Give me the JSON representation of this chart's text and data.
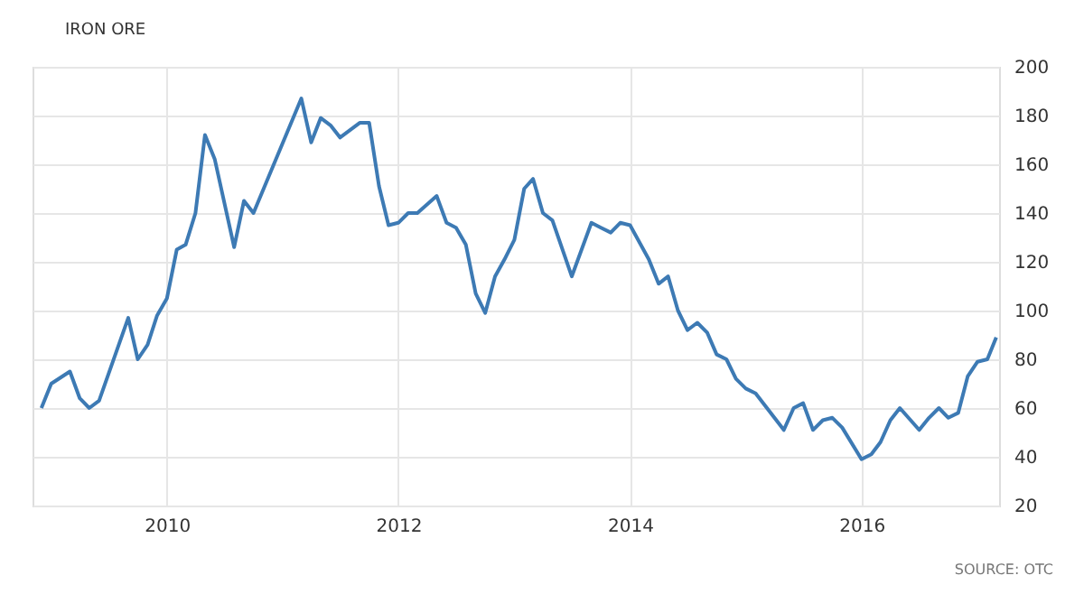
{
  "chart_data": {
    "type": "line",
    "title": "IRON ORE",
    "x": [
      "2008-12",
      "2009-01",
      "2009-03",
      "2009-04",
      "2009-05",
      "2009-06",
      "2009-09",
      "2009-10",
      "2009-11",
      "2009-12",
      "2010-01",
      "2010-02",
      "2010-03",
      "2010-04",
      "2010-05",
      "2010-06",
      "2010-08",
      "2010-09",
      "2010-10",
      "2011-03",
      "2011-04",
      "2011-05",
      "2011-06",
      "2011-07",
      "2011-09",
      "2011-10",
      "2011-11",
      "2011-12",
      "2012-01",
      "2012-02",
      "2012-03",
      "2012-05",
      "2012-06",
      "2012-07",
      "2012-08",
      "2012-09",
      "2012-10",
      "2012-11",
      "2012-12",
      "2013-01",
      "2013-02",
      "2013-03",
      "2013-04",
      "2013-05",
      "2013-07",
      "2013-09",
      "2013-10",
      "2013-11",
      "2013-12",
      "2014-01",
      "2014-03",
      "2014-04",
      "2014-05",
      "2014-06",
      "2014-07",
      "2014-08",
      "2014-09",
      "2014-10",
      "2014-11",
      "2014-12",
      "2015-01",
      "2015-02",
      "2015-05",
      "2015-06",
      "2015-07",
      "2015-08",
      "2015-09",
      "2015-10",
      "2015-11",
      "2016-01",
      "2016-02",
      "2016-03",
      "2016-04",
      "2016-05",
      "2016-07",
      "2016-08",
      "2016-09",
      "2016-10",
      "2016-11",
      "2016-12",
      "2017-01",
      "2017-02",
      "2017-03"
    ],
    "series": [
      {
        "color": "#3d7ab4",
        "values": [
          60,
          70,
          75,
          64,
          60,
          63,
          97,
          80,
          86,
          98,
          105,
          125,
          127,
          140,
          172,
          162,
          126,
          145,
          140,
          187,
          169,
          179,
          176,
          171,
          177,
          177,
          151,
          135,
          136,
          140,
          140,
          147,
          136,
          134,
          127,
          107,
          99,
          114,
          121,
          129,
          150,
          154,
          140,
          137,
          114,
          136,
          134,
          132,
          136,
          135,
          121,
          111,
          114,
          100,
          92,
          95,
          91,
          82,
          80,
          72,
          68,
          66,
          51,
          60,
          62,
          51,
          55,
          56,
          52,
          39,
          41,
          46,
          55,
          60,
          51,
          56,
          60,
          56,
          58,
          73,
          79,
          80,
          89
        ]
      }
    ],
    "xlim": [
      "2008-11-03",
      "2017-03-10"
    ],
    "xticks": [
      "2010",
      "2012",
      "2014",
      "2016"
    ],
    "ylim": [
      20,
      200
    ],
    "yticks": [
      20,
      40,
      60,
      80,
      100,
      120,
      140,
      160,
      180,
      200
    ],
    "grid": true,
    "marker": "none",
    "line_style": "solid",
    "annotations": [
      "SOURCE: OTC"
    ]
  }
}
